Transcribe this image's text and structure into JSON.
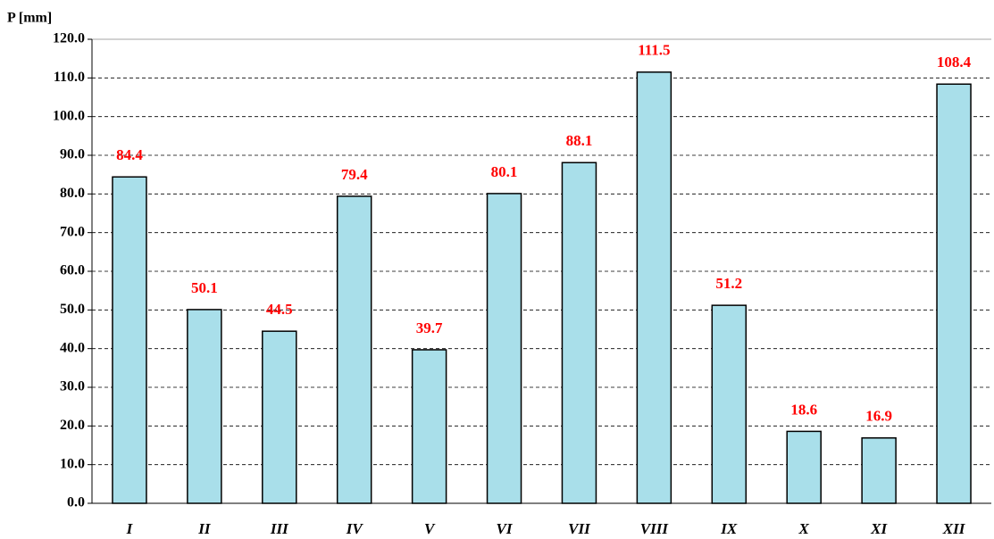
{
  "chart_data": {
    "type": "bar",
    "y_label": "P [mm]",
    "categories": [
      "I",
      "II",
      "III",
      "IV",
      "V",
      "VI",
      "VII",
      "VIII",
      "IX",
      "X",
      "XI",
      "XII"
    ],
    "values": [
      84.4,
      50.1,
      44.5,
      79.4,
      39.7,
      80.1,
      88.1,
      111.5,
      51.2,
      18.6,
      16.9,
      108.4
    ],
    "color": "#a9dfea",
    "label_color": "#ff0000",
    "ylim": [
      0,
      120
    ],
    "yticks": [
      {
        "value": 0,
        "label": "0.0"
      },
      {
        "value": 10,
        "label": "10.0"
      },
      {
        "value": 20,
        "label": "20.0"
      },
      {
        "value": 30,
        "label": "30.0"
      },
      {
        "value": 40,
        "label": "40.0"
      },
      {
        "value": 50,
        "label": "50.0"
      },
      {
        "value": 60,
        "label": "60.0"
      },
      {
        "value": 70,
        "label": "70.0"
      },
      {
        "value": 80,
        "label": "80.0"
      },
      {
        "value": 90,
        "label": "90.0"
      },
      {
        "value": 100,
        "label": "100.0"
      },
      {
        "value": 110,
        "label": "110.0"
      },
      {
        "value": 120,
        "label": "120.0"
      }
    ],
    "grid": true
  }
}
